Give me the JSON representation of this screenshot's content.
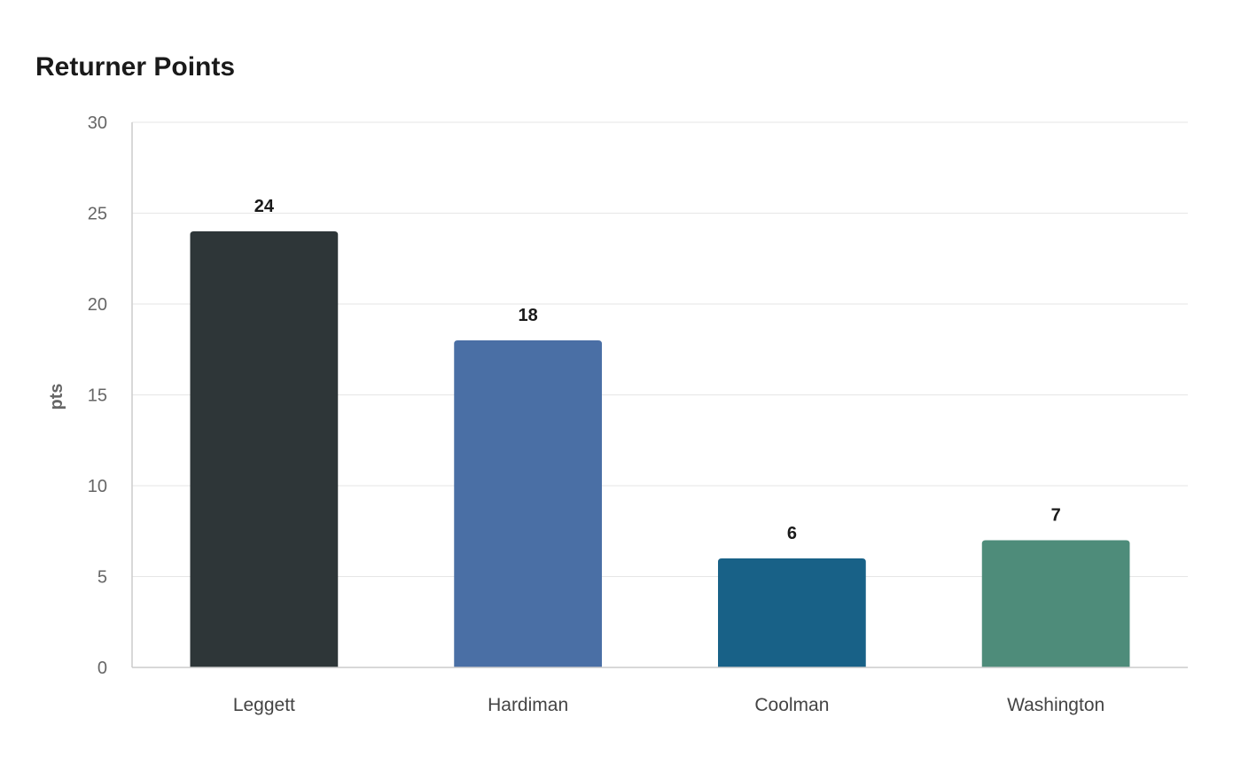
{
  "chart_data": {
    "type": "bar",
    "title": "Returner Points",
    "xlabel": "",
    "ylabel": "pts",
    "categories": [
      "Leggett",
      "Hardiman",
      "Coolman",
      "Washington"
    ],
    "values": [
      24,
      18,
      6,
      7
    ],
    "colors": [
      "#2e3638",
      "#4a6fa5",
      "#186187",
      "#4e8c7a"
    ],
    "ylim": [
      0,
      30
    ],
    "yticks": [
      0,
      5,
      10,
      15,
      20,
      25,
      30
    ],
    "grid": true,
    "data_labels": true
  }
}
